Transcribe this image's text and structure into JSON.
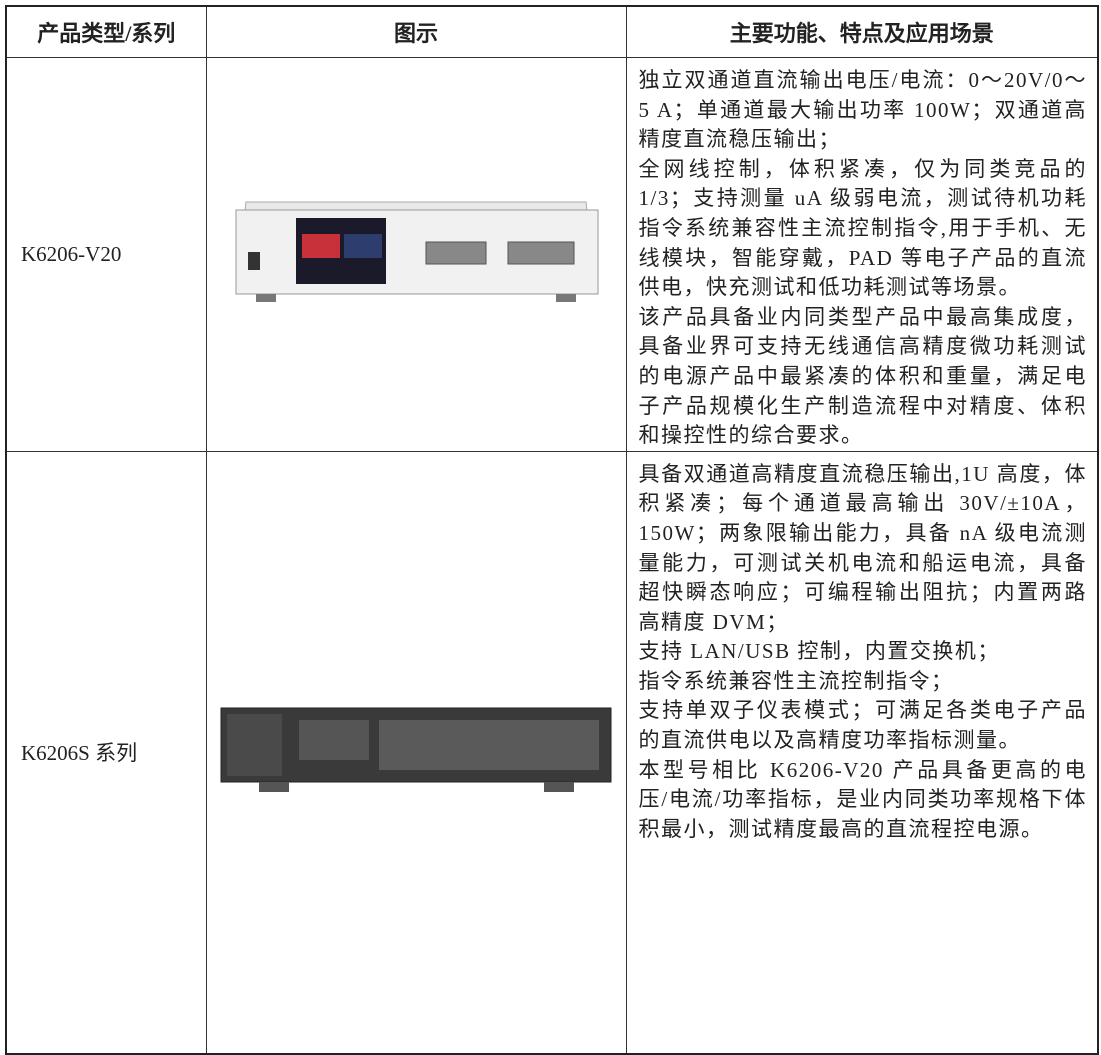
{
  "table": {
    "header": [
      "产品类型/系列",
      "图示",
      "主要功能、特点及应用场景"
    ],
    "rows": [
      {
        "model": "K6206-V20",
        "description": [
          "独立双通道直流输出电压/电流：0～20V/0～5 A；单通道最大输出功率 100W；双通道高精度直流稳压输出；",
          "全网线控制，体积紧凑，仅为同类竞品的1/3；支持测量 uA 级弱电流，测试待机功耗指令系统兼容性主流控制指令,用于手机、无线模块，智能穿戴，PAD 等电子产品的直流供电，快充测试和低功耗测试等场景。",
          "该产品具备业内同类型产品中最高集成度，具备业界可支持无线通信高精度微功耗测试的电源产品中最紧凑的体积和重量，满足电子产品规模化生产制造流程中对精度、体积和操控性的综合要求。"
        ]
      },
      {
        "model": "K6206S 系列",
        "description": [
          "具备双通道高精度直流稳压输出,1U 高度，体积紧凑；每个通道最高输出 30V/±10A，150W；两象限输出能力，具备 nA 级电流测量能力，可测试关机电流和船运电流，具备超快瞬态响应；可编程输出阻抗；内置两路高精度 DVM；",
          "支持 LAN/USB 控制，内置交换机；",
          "指令系统兼容性主流控制指令；",
          "支持单双子仪表模式；可满足各类电子产品的直流供电以及高精度功率指标测量。",
          "本型号相比 K6206-V20 产品具备更高的电压/电流/功率指标，是业内同类功率规格下体积最小，测试精度最高的直流程控电源。"
        ]
      }
    ]
  }
}
